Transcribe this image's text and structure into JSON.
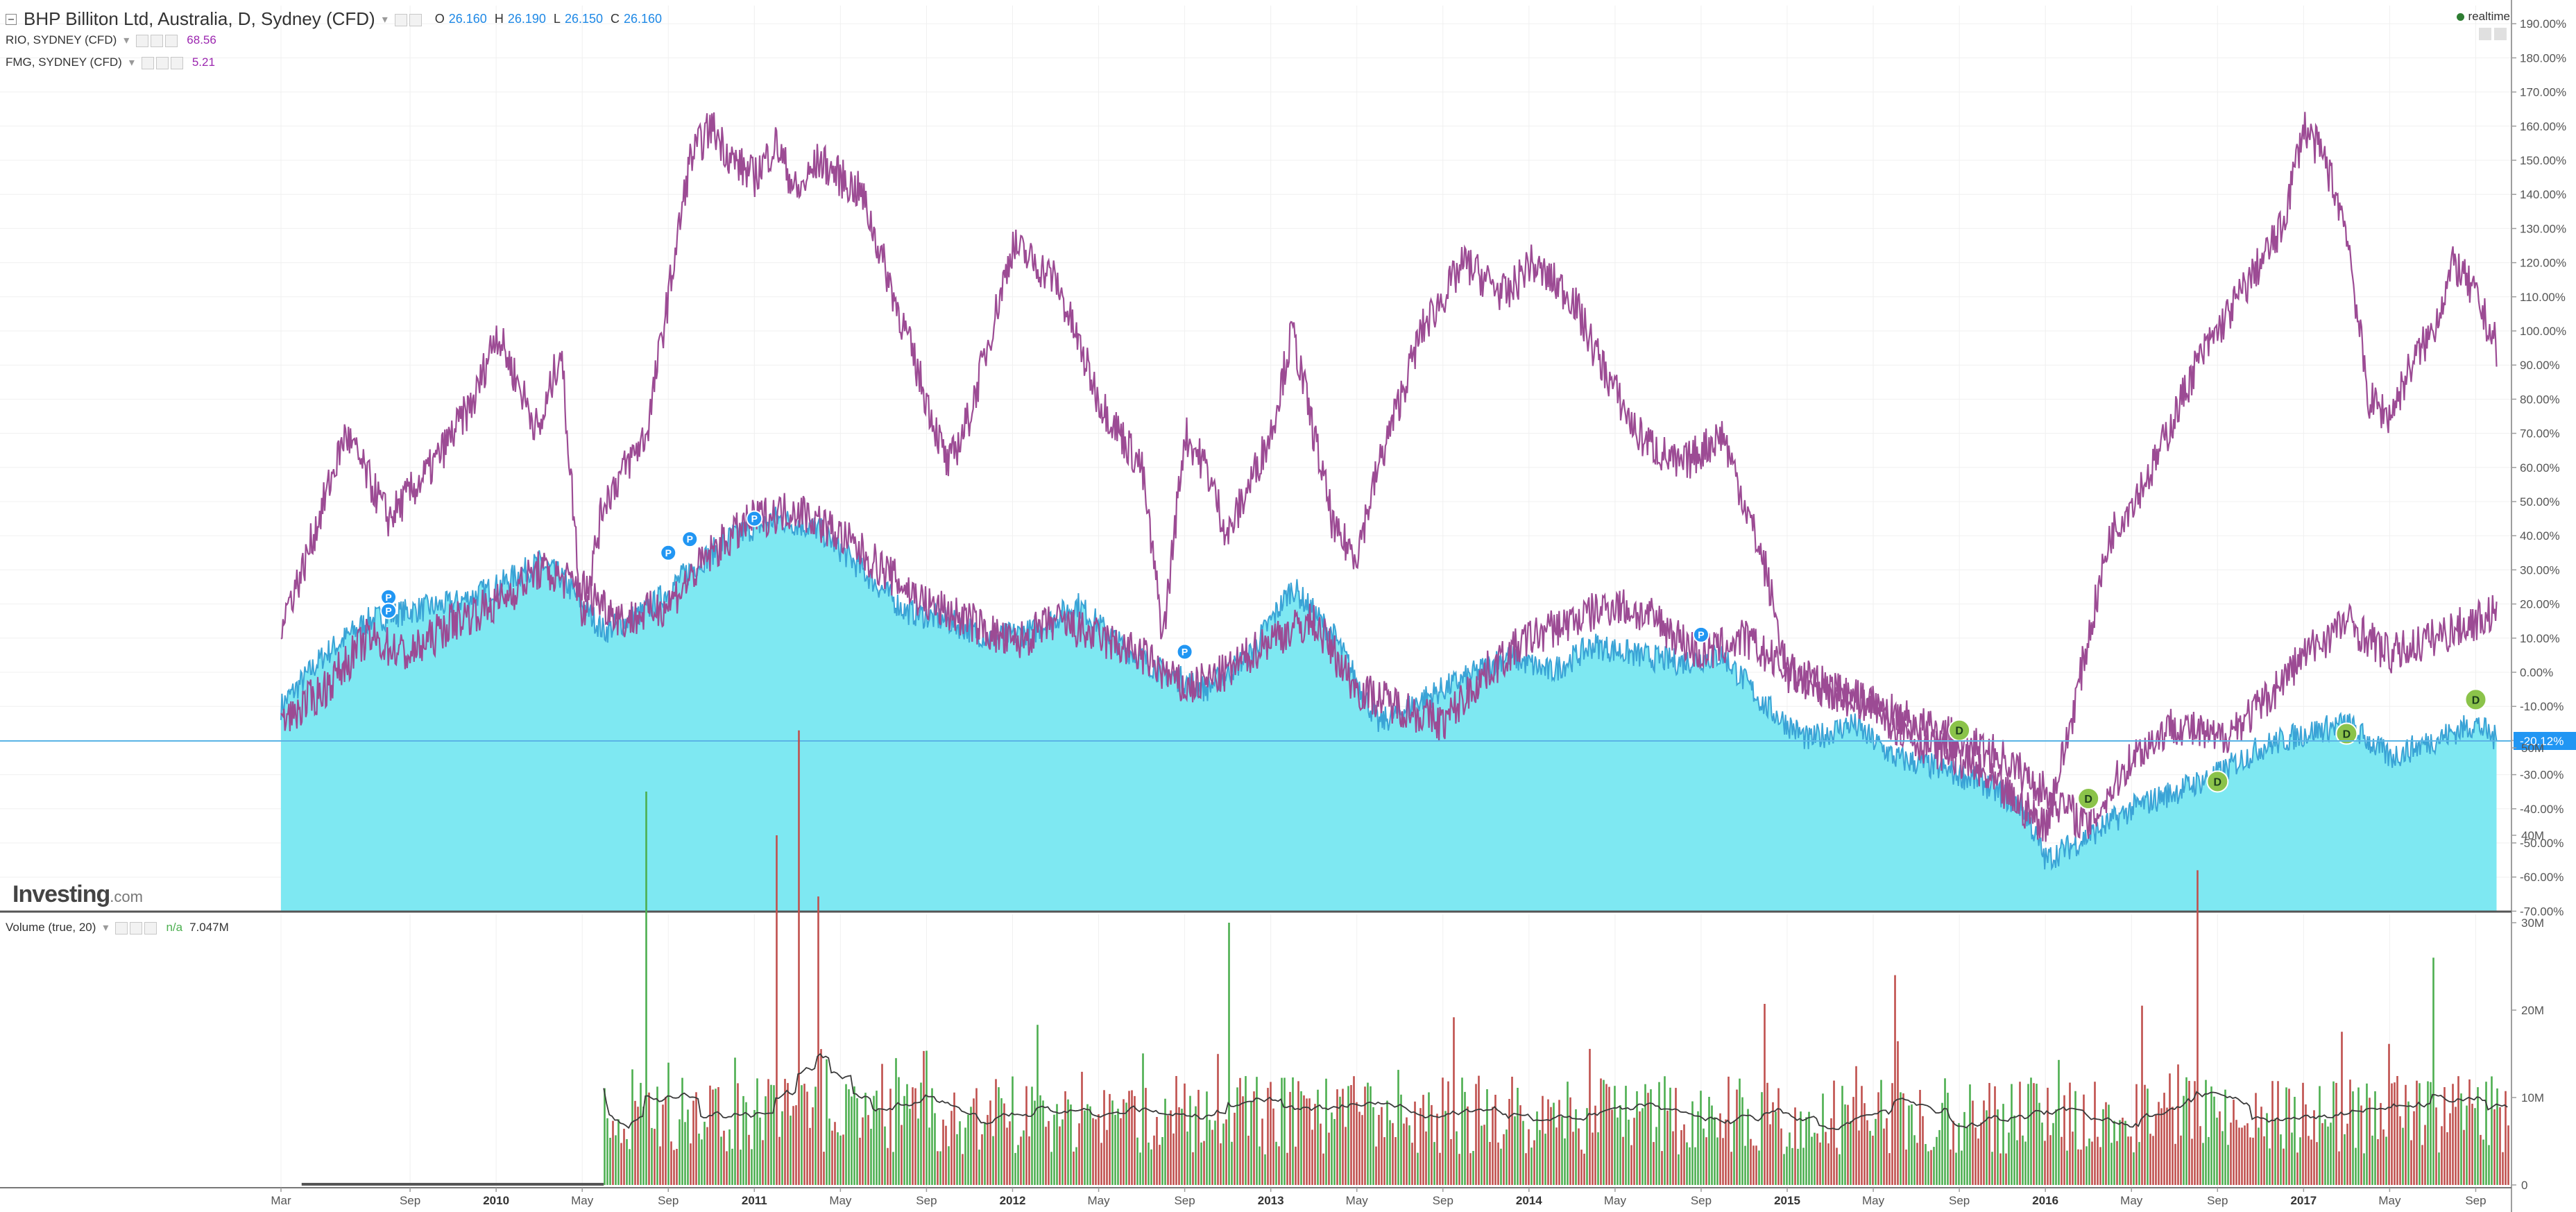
{
  "header": {
    "main_symbol": "BHP Billiton Ltd, Australia, D, Sydney (CFD)",
    "ohlc": [
      {
        "label": "O",
        "value": "26.160"
      },
      {
        "label": "H",
        "value": "26.190"
      },
      {
        "label": "L",
        "value": "26.150"
      },
      {
        "label": "C",
        "value": "26.160"
      }
    ],
    "compare": [
      {
        "name": "RIO, SYDNEY (CFD)",
        "value": "68.56",
        "color": "#9c27b0"
      },
      {
        "name": "FMG, SYDNEY (CFD)",
        "value": "5.21",
        "color": "#9c27b0"
      }
    ],
    "realtime_label": "realtime"
  },
  "volume_panel": {
    "label": "Volume (true, 20)",
    "na": "n/a",
    "value": "7.047M"
  },
  "logo": {
    "main": "Investing",
    "suffix": ".com"
  },
  "colors": {
    "area_fill": "#7ee8f2",
    "area_line": "#3aa3d6",
    "compare_line": "#9c4b94",
    "vol_up": "#4caf50",
    "vol_down": "#c0504d",
    "vol_ma": "#3a3a3a",
    "price_tag": "#2196f3"
  },
  "chart_data": {
    "type": "line",
    "y_unit": "%",
    "y_range": [
      -70,
      195
    ],
    "y_ticks": [
      "190.00%",
      "180.00%",
      "170.00%",
      "160.00%",
      "150.00%",
      "140.00%",
      "130.00%",
      "120.00%",
      "110.00%",
      "100.00%",
      "90.00%",
      "80.00%",
      "70.00%",
      "60.00%",
      "50.00%",
      "40.00%",
      "30.00%",
      "20.00%",
      "10.00%",
      "0.00%",
      "-10.00%",
      "-20.00%",
      "-30.00%",
      "-40.00%",
      "-50.00%",
      "-60.00%",
      "-70.00%"
    ],
    "current_value_label": "-20.12%",
    "x_ticks": [
      "Mar",
      "Sep",
      "2010",
      "May",
      "Sep",
      "2011",
      "May",
      "Sep",
      "2012",
      "May",
      "Sep",
      "2013",
      "May",
      "Sep",
      "2014",
      "May",
      "Sep",
      "2015",
      "May",
      "Sep",
      "2016",
      "May",
      "Sep",
      "2017",
      "May",
      "Sep"
    ],
    "x_range": [
      "2009-03",
      "2017-10"
    ],
    "series": [
      {
        "name": "BHP Billiton Ltd, Australia, D, Sydney (CFD)",
        "style": "area",
        "x": [
          "2009-03",
          "2009-05",
          "2009-07",
          "2009-09",
          "2009-11",
          "2010-01",
          "2010-03",
          "2010-04",
          "2010-06",
          "2010-08",
          "2010-10",
          "2010-12",
          "2011-02",
          "2011-04",
          "2011-06",
          "2011-08",
          "2011-10",
          "2011-12",
          "2012-02",
          "2012-04",
          "2012-06",
          "2012-08",
          "2012-10",
          "2012-12",
          "2013-02",
          "2013-04",
          "2013-06",
          "2013-08",
          "2013-10",
          "2013-12",
          "2014-02",
          "2014-04",
          "2014-06",
          "2014-08",
          "2014-10",
          "2014-12",
          "2015-02",
          "2015-04",
          "2015-06",
          "2015-08",
          "2015-10",
          "2015-12",
          "2016-01",
          "2016-03",
          "2016-05",
          "2016-07",
          "2016-09",
          "2016-11",
          "2017-01",
          "2017-03",
          "2017-05",
          "2017-07",
          "2017-09",
          "2017-10"
        ],
        "y": [
          -10,
          5,
          15,
          18,
          20,
          25,
          32,
          28,
          12,
          18,
          30,
          40,
          45,
          42,
          30,
          18,
          15,
          10,
          12,
          20,
          8,
          0,
          -5,
          5,
          25,
          10,
          -15,
          -8,
          -2,
          5,
          0,
          8,
          5,
          3,
          5,
          -10,
          -20,
          -15,
          -25,
          -28,
          -32,
          -40,
          -55,
          -48,
          -40,
          -35,
          -30,
          -22,
          -18,
          -15,
          -25,
          -20,
          -15,
          -20
        ]
      },
      {
        "name": "RIO, SYDNEY (CFD)",
        "style": "line",
        "x": [
          "2009-03",
          "2009-04",
          "2009-05",
          "2009-06",
          "2009-08",
          "2009-10",
          "2009-12",
          "2010-01",
          "2010-03",
          "2010-04",
          "2010-05",
          "2010-06",
          "2010-08",
          "2010-10",
          "2010-11",
          "2010-12",
          "2011-01",
          "2011-02",
          "2011-03",
          "2011-04",
          "2011-06",
          "2011-07",
          "2011-09",
          "2011-10",
          "2011-11",
          "2012-01",
          "2012-03",
          "2012-05",
          "2012-07",
          "2012-08",
          "2012-09",
          "2012-10",
          "2012-11",
          "2013-01",
          "2013-02",
          "2013-03",
          "2013-04",
          "2013-05",
          "2013-06",
          "2013-08",
          "2013-10",
          "2013-12",
          "2014-01",
          "2014-03",
          "2014-04",
          "2014-06",
          "2014-08",
          "2014-10",
          "2014-12",
          "2015-01",
          "2015-03",
          "2015-05",
          "2015-07",
          "2015-09",
          "2015-11",
          "2016-01",
          "2016-02",
          "2016-03",
          "2016-04",
          "2016-06",
          "2016-08",
          "2016-10",
          "2016-12",
          "2017-01",
          "2017-02",
          "2017-03",
          "2017-04",
          "2017-05",
          "2017-06",
          "2017-07",
          "2017-08",
          "2017-09",
          "2017-10"
        ],
        "y": [
          15,
          30,
          50,
          70,
          45,
          60,
          80,
          100,
          70,
          95,
          15,
          50,
          70,
          150,
          160,
          150,
          145,
          155,
          140,
          150,
          140,
          120,
          80,
          60,
          75,
          125,
          115,
          80,
          60,
          10,
          70,
          60,
          40,
          70,
          100,
          70,
          40,
          35,
          60,
          100,
          120,
          110,
          120,
          110,
          95,
          70,
          60,
          70,
          30,
          0,
          -5,
          -10,
          -20,
          -25,
          -35,
          -45,
          -20,
          10,
          40,
          60,
          90,
          110,
          130,
          160,
          150,
          130,
          80,
          75,
          90,
          100,
          120,
          110,
          95
        ]
      },
      {
        "name": "FMG, SYDNEY (CFD)",
        "style": "line",
        "x": [
          "2009-03",
          "2009-05",
          "2009-07",
          "2009-09",
          "2009-11",
          "2010-01",
          "2010-03",
          "2010-05",
          "2010-07",
          "2010-09",
          "2010-11",
          "2011-01",
          "2011-03",
          "2011-05",
          "2011-07",
          "2011-09",
          "2011-11",
          "2012-01",
          "2012-03",
          "2012-05",
          "2012-07",
          "2012-09",
          "2012-11",
          "2013-01",
          "2013-03",
          "2013-05",
          "2013-07",
          "2013-09",
          "2013-11",
          "2014-01",
          "2014-03",
          "2014-05",
          "2014-07",
          "2014-09",
          "2014-11",
          "2015-01",
          "2015-03",
          "2015-05",
          "2015-07",
          "2015-09",
          "2015-11",
          "2016-01",
          "2016-03",
          "2016-05",
          "2016-07",
          "2016-09",
          "2016-11",
          "2017-01",
          "2017-03",
          "2017-05",
          "2017-07",
          "2017-09",
          "2017-10"
        ],
        "y": [
          -15,
          -5,
          10,
          5,
          15,
          20,
          30,
          25,
          15,
          20,
          35,
          45,
          48,
          40,
          30,
          20,
          15,
          8,
          15,
          10,
          5,
          -5,
          0,
          10,
          15,
          -5,
          -10,
          -15,
          0,
          10,
          15,
          20,
          15,
          5,
          10,
          0,
          -5,
          -10,
          -15,
          -20,
          -25,
          -35,
          -45,
          -25,
          -15,
          -20,
          -10,
          5,
          15,
          5,
          10,
          15,
          18
        ]
      }
    ],
    "markers": [
      {
        "label": "P",
        "x": "2009-08",
        "y": 22
      },
      {
        "label": "P",
        "x": "2009-08",
        "y": 18
      },
      {
        "label": "P",
        "x": "2010-09",
        "y": 35
      },
      {
        "label": "P",
        "x": "2010-10",
        "y": 39
      },
      {
        "label": "P",
        "x": "2011-01",
        "y": 45
      },
      {
        "label": "P",
        "x": "2012-09",
        "y": 6
      },
      {
        "label": "P",
        "x": "2014-09",
        "y": 11
      },
      {
        "label": "D",
        "x": "2015-09",
        "y": -17
      },
      {
        "label": "D",
        "x": "2016-03",
        "y": -37
      },
      {
        "label": "D",
        "x": "2016-09",
        "y": -32
      },
      {
        "label": "D",
        "x": "2017-03",
        "y": -18
      },
      {
        "label": "D",
        "x": "2017-09",
        "y": -8
      }
    ],
    "volume": {
      "y_ticks": [
        "50M",
        "40M",
        "30M",
        "20M",
        "10M",
        "0"
      ],
      "y_range": [
        0,
        55
      ],
      "unit": "M",
      "start": "2010-06",
      "typical": 10,
      "spikes": [
        {
          "x": "2010-08",
          "v": 45
        },
        {
          "x": "2011-02",
          "v": 40
        },
        {
          "x": "2011-03",
          "v": 52
        },
        {
          "x": "2011-04",
          "v": 33
        },
        {
          "x": "2012-11",
          "v": 30
        },
        {
          "x": "2015-06",
          "v": 24
        },
        {
          "x": "2016-08",
          "v": 36
        },
        {
          "x": "2017-07",
          "v": 26
        }
      ]
    }
  }
}
